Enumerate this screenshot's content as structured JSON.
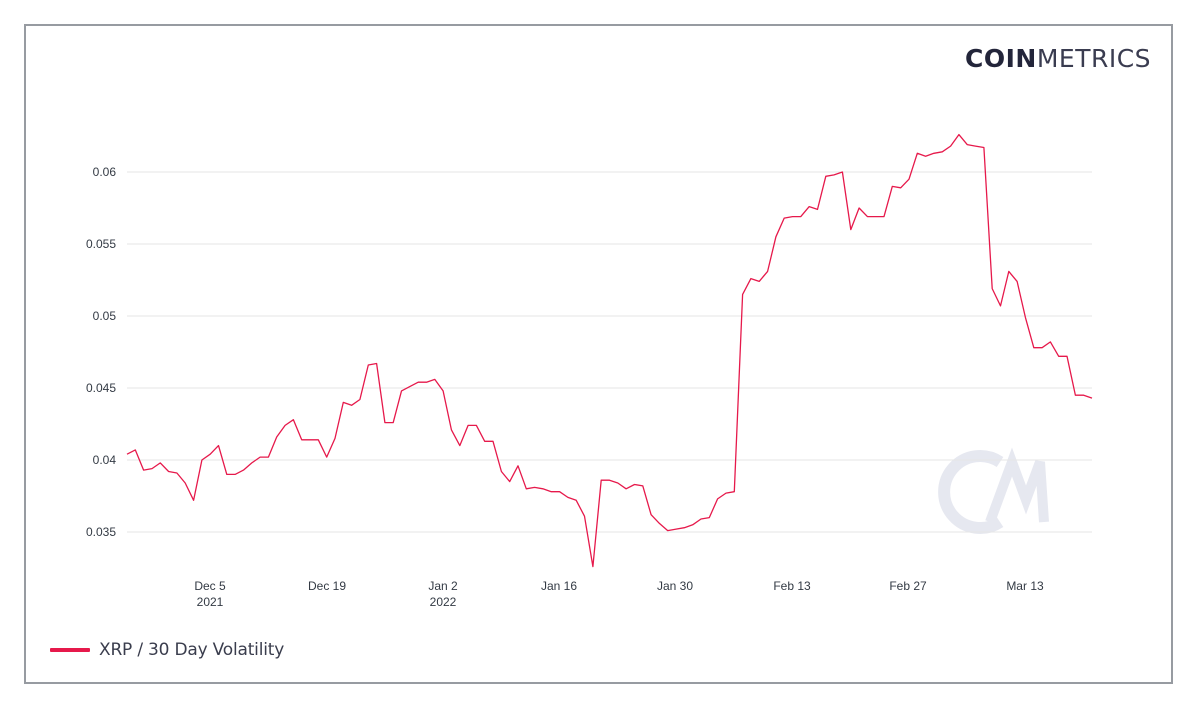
{
  "brand": {
    "bold": "COIN",
    "light": "METRICS",
    "watermark": "CM"
  },
  "legend": {
    "label": "XRP / 30 Day Volatility",
    "color": "#e6194b"
  },
  "colors": {
    "line": "#e6194b",
    "grid": "#e6e6e6",
    "frame": "#979ba1",
    "watermark": "#e6e8f0"
  },
  "chart_data": {
    "type": "line",
    "title": "",
    "xlabel": "",
    "ylabel": "",
    "ylim": [
      0.0325,
      0.0635
    ],
    "grid": true,
    "legend_position": "bottom-left",
    "y_ticks": [
      "0.035",
      "0.04",
      "0.045",
      "0.05",
      "0.055",
      "0.06"
    ],
    "x_ticks": [
      {
        "label": "Dec 5",
        "sub": "2021"
      },
      {
        "label": "Dec 19",
        "sub": ""
      },
      {
        "label": "Jan 2",
        "sub": "2022"
      },
      {
        "label": "Jan 16",
        "sub": ""
      },
      {
        "label": "Jan 30",
        "sub": ""
      },
      {
        "label": "Feb 13",
        "sub": ""
      },
      {
        "label": "Feb 27",
        "sub": ""
      },
      {
        "label": "Mar 13",
        "sub": ""
      }
    ],
    "x_start": "2021-11-25",
    "x_end": "2022-03-20",
    "series": [
      {
        "name": "XRP / 30 Day Volatility",
        "values": [
          0.0404,
          0.0407,
          0.0393,
          0.0394,
          0.0398,
          0.0392,
          0.0391,
          0.0384,
          0.0372,
          0.04,
          0.0404,
          0.041,
          0.039,
          0.039,
          0.0393,
          0.0398,
          0.0402,
          0.0402,
          0.0416,
          0.0424,
          0.0428,
          0.0414,
          0.0414,
          0.0414,
          0.0402,
          0.0415,
          0.044,
          0.0438,
          0.0442,
          0.0466,
          0.0467,
          0.0426,
          0.0426,
          0.0448,
          0.0451,
          0.0454,
          0.0454,
          0.0456,
          0.0448,
          0.0421,
          0.041,
          0.0424,
          0.0424,
          0.0413,
          0.0413,
          0.0392,
          0.0385,
          0.0396,
          0.038,
          0.0381,
          0.038,
          0.0378,
          0.0378,
          0.0374,
          0.0372,
          0.0361,
          0.0326,
          0.0386,
          0.0386,
          0.0384,
          0.038,
          0.0383,
          0.0382,
          0.0362,
          0.0356,
          0.0351,
          0.0352,
          0.0353,
          0.0355,
          0.0359,
          0.036,
          0.0373,
          0.0377,
          0.0378,
          0.0515,
          0.0526,
          0.0524,
          0.0531,
          0.0555,
          0.0568,
          0.0569,
          0.0569,
          0.0576,
          0.0574,
          0.0597,
          0.0598,
          0.06,
          0.056,
          0.0575,
          0.0569,
          0.0569,
          0.0569,
          0.059,
          0.0589,
          0.0595,
          0.0613,
          0.0611,
          0.0613,
          0.0614,
          0.0618,
          0.0626,
          0.0619,
          0.0618,
          0.0617,
          0.0519,
          0.0507,
          0.0531,
          0.0524,
          0.0499,
          0.0478,
          0.0478,
          0.0482,
          0.0472,
          0.0472,
          0.0445,
          0.0445,
          0.0443
        ]
      }
    ]
  }
}
